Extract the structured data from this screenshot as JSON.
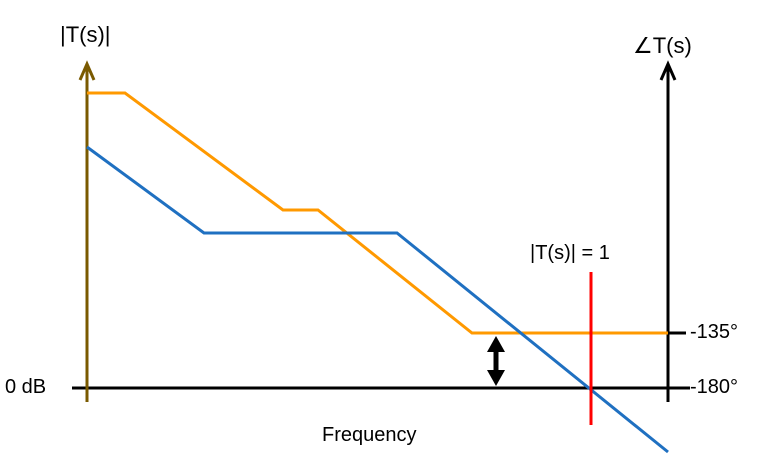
{
  "labels": {
    "magnitude_axis": "|T(s)|",
    "phase_axis": "∠T(s)",
    "crossover": "|T(s)| = 1",
    "zero_db": "0 dB",
    "phase_135": "-135°",
    "phase_180": "-180°",
    "x_axis": "Frequency"
  },
  "colors": {
    "magnitude_axis": "#7a5a00",
    "phase_axis": "#000000",
    "phase_curve": "#ff9900",
    "magnitude_curve": "#1f70c1",
    "crossover_line": "#ff0000",
    "phase_margin_arrow": "#000000"
  }
}
